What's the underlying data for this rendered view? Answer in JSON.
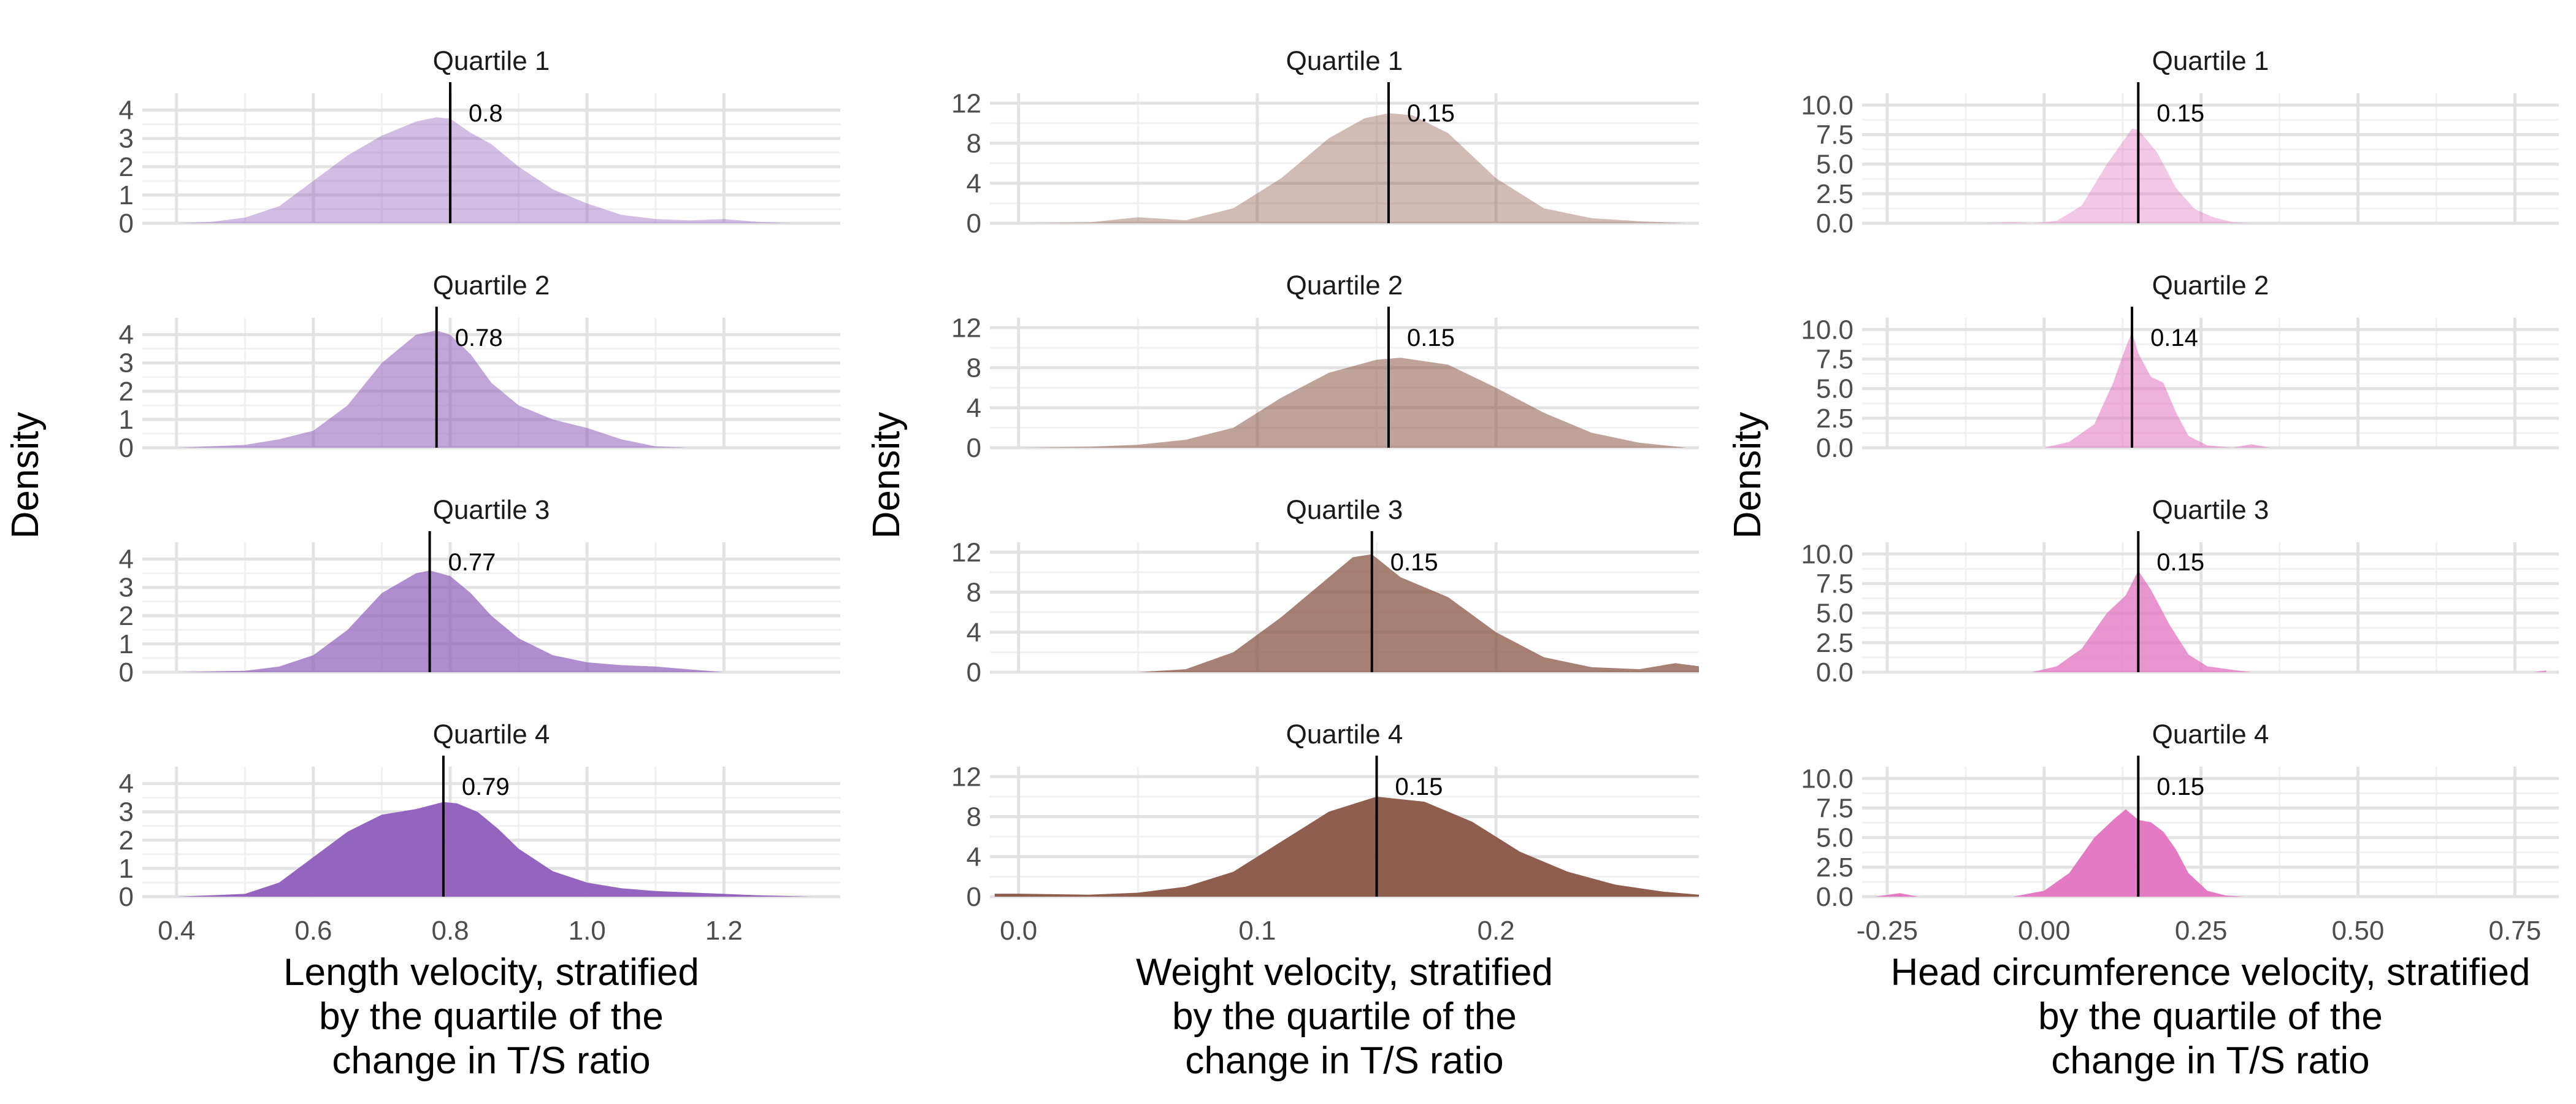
{
  "chart_data": [
    {
      "type": "area",
      "variable": "length",
      "color": "#8E5DBB",
      "xlabel": [
        "Length velocity, stratified",
        "by the quartile of the",
        "change in T/S ratio"
      ],
      "ylabel": "Density",
      "xlim": [
        0.35,
        1.37
      ],
      "ylim": [
        0,
        4.6
      ],
      "x_ticks": [
        0.4,
        0.6,
        0.8,
        1.0,
        1.2
      ],
      "x_tick_labels": [
        "0.4",
        "0.6",
        "0.8",
        "1.0",
        "1.2"
      ],
      "y_ticks": [
        0,
        1,
        2,
        3,
        4
      ],
      "y_tick_labels": [
        "0",
        "1",
        "2",
        "3",
        "4"
      ],
      "grid": true,
      "panels": [
        {
          "title": "Quartile 1",
          "opacity": 0.4,
          "median": 0.8,
          "median_label": "0.8",
          "x": [
            0.4,
            0.45,
            0.5,
            0.55,
            0.6,
            0.65,
            0.7,
            0.75,
            0.78,
            0.8,
            0.83,
            0.86,
            0.9,
            0.95,
            1.0,
            1.05,
            1.1,
            1.15,
            1.2,
            1.25,
            1.3
          ],
          "y": [
            0.0,
            0.05,
            0.2,
            0.6,
            1.5,
            2.4,
            3.1,
            3.6,
            3.75,
            3.7,
            3.2,
            2.8,
            2.0,
            1.2,
            0.7,
            0.3,
            0.15,
            0.1,
            0.15,
            0.05,
            0.0
          ]
        },
        {
          "title": "Quartile 2",
          "opacity": 0.55,
          "median": 0.78,
          "median_label": "0.78",
          "x": [
            0.4,
            0.5,
            0.55,
            0.6,
            0.65,
            0.7,
            0.75,
            0.78,
            0.8,
            0.83,
            0.86,
            0.9,
            0.95,
            1.0,
            1.05,
            1.1,
            1.15
          ],
          "y": [
            0.0,
            0.1,
            0.3,
            0.6,
            1.5,
            3.0,
            4.0,
            4.15,
            4.0,
            3.3,
            2.3,
            1.5,
            1.0,
            0.7,
            0.3,
            0.05,
            0.0
          ]
        },
        {
          "title": "Quartile 3",
          "opacity": 0.7,
          "median": 0.77,
          "median_label": "0.77",
          "x": [
            0.4,
            0.5,
            0.55,
            0.6,
            0.65,
            0.7,
            0.75,
            0.77,
            0.8,
            0.83,
            0.86,
            0.9,
            0.95,
            1.0,
            1.05,
            1.1,
            1.15,
            1.2
          ],
          "y": [
            0.0,
            0.05,
            0.2,
            0.6,
            1.5,
            2.8,
            3.5,
            3.6,
            3.4,
            2.8,
            2.0,
            1.2,
            0.6,
            0.35,
            0.25,
            0.2,
            0.1,
            0.0
          ]
        },
        {
          "title": "Quartile 4",
          "opacity": 0.95,
          "median": 0.79,
          "median_label": "0.79",
          "x": [
            0.4,
            0.45,
            0.5,
            0.55,
            0.6,
            0.65,
            0.7,
            0.75,
            0.79,
            0.81,
            0.84,
            0.87,
            0.9,
            0.95,
            1.0,
            1.05,
            1.1,
            1.15,
            1.2,
            1.25,
            1.33
          ],
          "y": [
            0.0,
            0.05,
            0.1,
            0.5,
            1.4,
            2.3,
            2.9,
            3.1,
            3.35,
            3.3,
            3.0,
            2.4,
            1.7,
            0.9,
            0.5,
            0.3,
            0.2,
            0.15,
            0.1,
            0.05,
            0.0
          ]
        }
      ]
    },
    {
      "type": "area",
      "variable": "weight",
      "color": "#8A5546",
      "xlabel": [
        "Weight velocity, stratified",
        "by the quartile of the",
        "change in T/S ratio"
      ],
      "ylabel": "Density",
      "xlim": [
        -0.012,
        0.285
      ],
      "ylim": [
        0,
        13
      ],
      "x_ticks": [
        0.0,
        0.1,
        0.2
      ],
      "x_tick_labels": [
        "0.0",
        "0.1",
        "0.2"
      ],
      "y_ticks": [
        0,
        4,
        8,
        12
      ],
      "y_tick_labels": [
        "0",
        "4",
        "8",
        "12"
      ],
      "grid": true,
      "panels": [
        {
          "title": "Quartile 1",
          "opacity": 0.4,
          "median": 0.155,
          "median_label": "0.15",
          "x": [
            0.0,
            0.03,
            0.05,
            0.07,
            0.09,
            0.11,
            0.13,
            0.145,
            0.155,
            0.165,
            0.18,
            0.2,
            0.22,
            0.24,
            0.26,
            0.28
          ],
          "y": [
            0.0,
            0.1,
            0.6,
            0.3,
            1.5,
            4.5,
            8.5,
            10.5,
            11.0,
            10.8,
            9.0,
            4.5,
            1.5,
            0.5,
            0.2,
            0.0
          ]
        },
        {
          "title": "Quartile 2",
          "opacity": 0.55,
          "median": 0.155,
          "median_label": "0.15",
          "x": [
            0.0,
            0.03,
            0.05,
            0.07,
            0.09,
            0.11,
            0.13,
            0.15,
            0.16,
            0.18,
            0.2,
            0.22,
            0.24,
            0.26,
            0.28
          ],
          "y": [
            0.0,
            0.1,
            0.3,
            0.8,
            2.0,
            5.0,
            7.5,
            8.8,
            9.0,
            8.3,
            6.0,
            3.5,
            1.5,
            0.5,
            0.0
          ]
        },
        {
          "title": "Quartile 3",
          "opacity": 0.75,
          "median": 0.148,
          "median_label": "0.15",
          "x": [
            0.05,
            0.07,
            0.09,
            0.11,
            0.13,
            0.14,
            0.148,
            0.16,
            0.18,
            0.2,
            0.22,
            0.24,
            0.26,
            0.275,
            0.285
          ],
          "y": [
            0.0,
            0.3,
            2.0,
            5.5,
            9.5,
            11.5,
            11.8,
            9.5,
            7.5,
            4.0,
            1.5,
            0.5,
            0.3,
            0.9,
            0.6
          ]
        },
        {
          "title": "Quartile 4",
          "opacity": 0.95,
          "median": 0.15,
          "median_label": "0.15",
          "x": [
            -0.01,
            0.0,
            0.03,
            0.05,
            0.07,
            0.09,
            0.11,
            0.13,
            0.15,
            0.17,
            0.19,
            0.21,
            0.23,
            0.25,
            0.27,
            0.285
          ],
          "y": [
            0.3,
            0.3,
            0.2,
            0.4,
            1.0,
            2.5,
            5.5,
            8.5,
            10.0,
            9.5,
            7.5,
            4.5,
            2.5,
            1.2,
            0.5,
            0.2
          ]
        }
      ]
    },
    {
      "type": "area",
      "variable": "head_circumference",
      "color": "#E273C0",
      "xlabel": [
        "Head circumference velocity, stratified",
        "by the quartile of the",
        "change in T/S ratio"
      ],
      "ylabel": "Density",
      "xlim": [
        -0.29,
        0.82
      ],
      "ylim": [
        0,
        11
      ],
      "x_ticks": [
        -0.25,
        0.0,
        0.25,
        0.5,
        0.75
      ],
      "x_tick_labels": [
        "-0.25",
        "0.00",
        "0.25",
        "0.50",
        "0.75"
      ],
      "y_ticks": [
        0,
        2.5,
        5,
        7.5,
        10
      ],
      "y_tick_labels": [
        "0.0",
        "2.5",
        "5.0",
        "7.5",
        "10.0"
      ],
      "grid": true,
      "panels": [
        {
          "title": "Quartile 1",
          "opacity": 0.4,
          "median": 0.15,
          "median_label": "0.15",
          "x": [
            -0.1,
            -0.05,
            -0.02,
            0.02,
            0.06,
            0.1,
            0.14,
            0.15,
            0.18,
            0.21,
            0.24,
            0.27,
            0.3,
            0.33
          ],
          "y": [
            0.0,
            0.1,
            0.0,
            0.2,
            1.5,
            5.0,
            8.0,
            7.9,
            6.0,
            3.0,
            1.2,
            0.5,
            0.1,
            0.0
          ]
        },
        {
          "title": "Quartile 2",
          "opacity": 0.55,
          "median": 0.14,
          "median_label": "0.14",
          "x": [
            0.0,
            0.04,
            0.08,
            0.11,
            0.13,
            0.14,
            0.15,
            0.17,
            0.19,
            0.21,
            0.23,
            0.26,
            0.3,
            0.33,
            0.36
          ],
          "y": [
            0.0,
            0.5,
            2.0,
            5.5,
            8.5,
            9.8,
            8.0,
            6.0,
            5.5,
            3.0,
            1.0,
            0.2,
            0.0,
            0.3,
            0.0
          ]
        },
        {
          "title": "Quartile 3",
          "opacity": 0.75,
          "median": 0.15,
          "median_label": "0.15",
          "x": [
            -0.02,
            0.02,
            0.06,
            0.1,
            0.13,
            0.15,
            0.17,
            0.2,
            0.23,
            0.26,
            0.3,
            0.33,
            0.78,
            0.8
          ],
          "y": [
            0.0,
            0.5,
            2.0,
            5.0,
            6.5,
            8.6,
            7.0,
            4.0,
            1.5,
            0.5,
            0.2,
            0.0,
            0.0,
            0.15
          ]
        },
        {
          "title": "Quartile 4",
          "opacity": 0.95,
          "median": 0.15,
          "median_label": "0.15",
          "x": [
            -0.27,
            -0.23,
            -0.2,
            -0.05,
            0.0,
            0.04,
            0.08,
            0.11,
            0.13,
            0.15,
            0.17,
            0.19,
            0.21,
            0.23,
            0.26,
            0.29,
            0.32
          ],
          "y": [
            0.0,
            0.3,
            0.0,
            0.0,
            0.5,
            2.0,
            5.0,
            6.5,
            7.4,
            6.5,
            6.3,
            5.5,
            4.0,
            2.0,
            0.5,
            0.1,
            0.0
          ]
        }
      ]
    }
  ]
}
